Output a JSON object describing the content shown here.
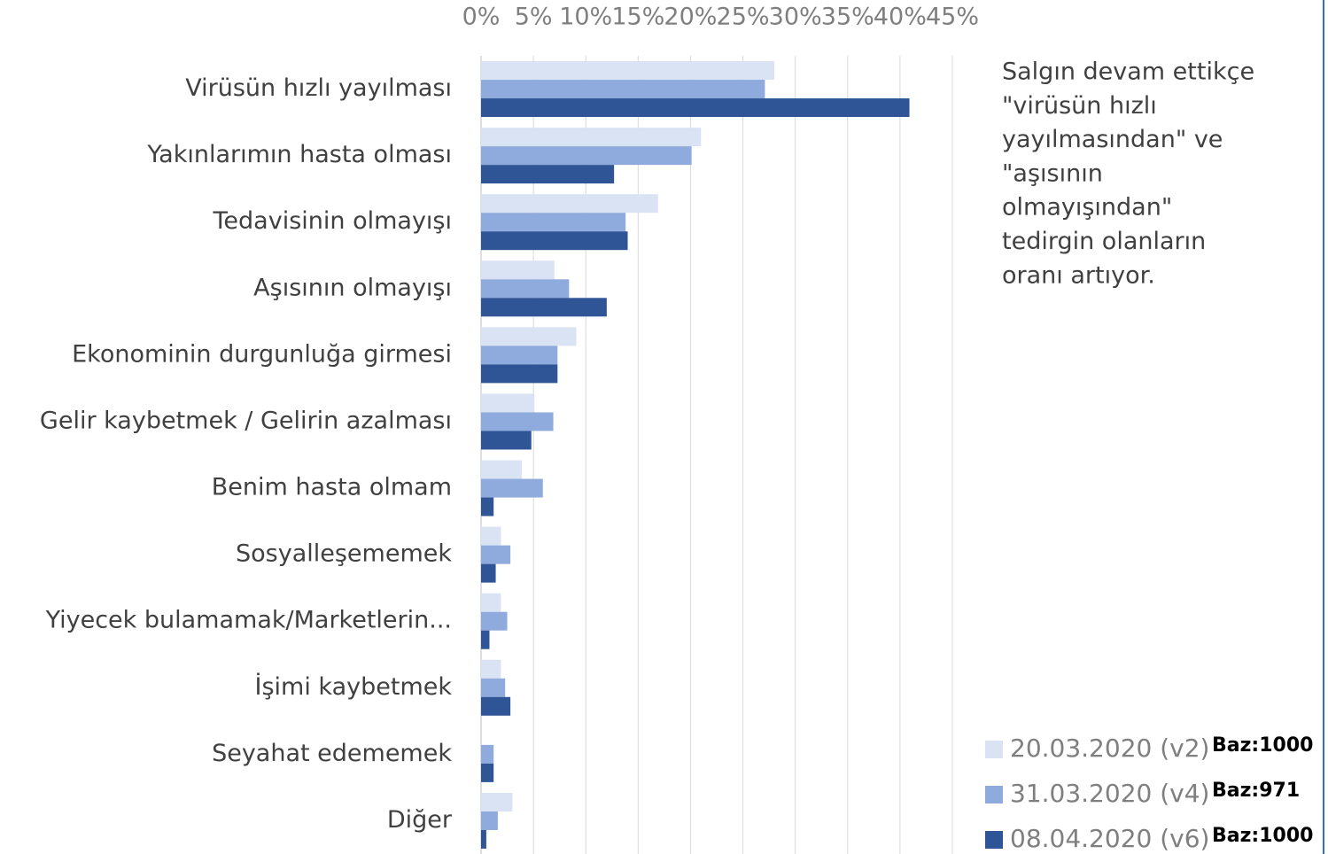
{
  "chart_data": {
    "type": "bar",
    "orientation": "horizontal",
    "categories": [
      "Virüsün hızlı yayılması",
      "Yakınlarımın hasta olması",
      "Tedavisinin olmayışı",
      "Aşısının olmayışı",
      "Ekonominin durgunluğa girmesi",
      "Gelir kaybetmek / Gelirin azalması",
      "Benim hasta olmam",
      "Sosyalleşememek",
      "Yiyecek bulamamak/Marketlerin...",
      "İşimi kaybetmek",
      "Seyahat edememek",
      "Diğer"
    ],
    "series": [
      {
        "name": "20.03.2020 (v2)",
        "color": "#dae3f3",
        "values": [
          28.0,
          21.0,
          16.9,
          7.0,
          9.1,
          5.1,
          3.9,
          1.9,
          1.9,
          1.9,
          0,
          3.0
        ]
      },
      {
        "name": "31.03.2020 (v4)",
        "color": "#8faadc",
        "values": [
          27.1,
          20.1,
          13.8,
          8.4,
          7.3,
          6.9,
          5.9,
          2.8,
          2.5,
          2.3,
          1.2,
          1.6
        ]
      },
      {
        "name": "08.04.2020 (v6)",
        "color": "#2f5597",
        "values": [
          40.9,
          12.7,
          14.0,
          12.0,
          7.3,
          4.8,
          1.2,
          1.4,
          0.8,
          2.8,
          1.2,
          0.5
        ]
      }
    ],
    "legend_notes": [
      "Baz:1000",
      "Baz:971",
      "Baz:1000"
    ],
    "annotation": [
      "Salgın devam ettikçe",
      "\"virüsün hızlı",
      "yayılmasından\" ve",
      "\"aşısının",
      "olmayışından\"",
      "tedirgin olanların",
      "oranı artıyor."
    ],
    "xlim": [
      0,
      45
    ],
    "xticks": [
      {
        "value": 0,
        "label": "0%"
      },
      {
        "value": 5,
        "label": "5%"
      },
      {
        "value": 10,
        "label": "10%"
      },
      {
        "value": 15,
        "label": "15%"
      },
      {
        "value": 20,
        "label": "20%"
      },
      {
        "value": 25,
        "label": "25%"
      },
      {
        "value": 30,
        "label": "30%"
      },
      {
        "value": 35,
        "label": "35%"
      },
      {
        "value": 40,
        "label": "40%"
      },
      {
        "value": 45,
        "label": "45%"
      }
    ],
    "grid": true
  }
}
